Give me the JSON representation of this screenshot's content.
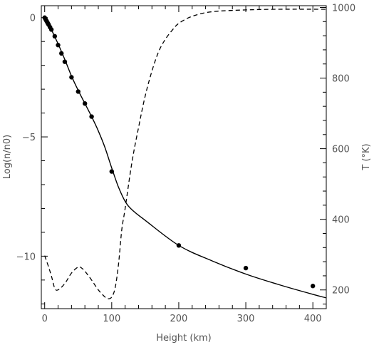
{
  "chart_data": {
    "type": "line",
    "xlabel": "Height (km)",
    "ylabel_left": "Log(n/n0)",
    "ylabel_right": "T (°K)",
    "xlim": [
      -5,
      420
    ],
    "ylim_left": [
      -12.2,
      0.5
    ],
    "ylim_right": [
      147,
      1005
    ],
    "x_ticks": [
      0,
      100,
      200,
      300,
      400
    ],
    "y_left_ticks": [
      0,
      -5,
      -10
    ],
    "y_right_ticks": [
      200,
      400,
      600,
      800,
      1000
    ],
    "grid": false,
    "series": [
      {
        "axis": "left",
        "style": "solid",
        "x": [
          0,
          5,
          10,
          15,
          20,
          30,
          40,
          50,
          60,
          70,
          80,
          90,
          100,
          110,
          120,
          130,
          150,
          200,
          250,
          300,
          350,
          400,
          420
        ],
        "values": [
          0.0,
          -0.23,
          -0.5,
          -0.8,
          -1.1,
          -1.75,
          -2.45,
          -3.05,
          -3.6,
          -4.15,
          -4.75,
          -5.45,
          -6.3,
          -7.1,
          -7.7,
          -8.05,
          -8.5,
          -9.55,
          -10.2,
          -10.75,
          -11.2,
          -11.6,
          -11.75
        ]
      },
      {
        "axis": "left",
        "style": "points",
        "x": [
          0,
          1,
          2,
          3,
          4,
          5,
          6,
          8,
          10,
          15,
          20,
          25,
          30,
          40,
          50,
          60,
          70,
          100,
          200,
          300,
          400
        ],
        "values": [
          0.0,
          -0.05,
          -0.1,
          -0.15,
          -0.2,
          -0.25,
          -0.3,
          -0.4,
          -0.5,
          -0.78,
          -1.15,
          -1.5,
          -1.85,
          -2.5,
          -3.1,
          -3.6,
          -4.15,
          -6.45,
          -9.55,
          -10.5,
          -11.25
        ]
      },
      {
        "axis": "right",
        "style": "dashed",
        "x": [
          0,
          5,
          10,
          15,
          20,
          30,
          40,
          50,
          55,
          60,
          70,
          80,
          90,
          95,
          100,
          105,
          110,
          115,
          120,
          130,
          140,
          150,
          160,
          170,
          180,
          190,
          200,
          220,
          250,
          300,
          350,
          420
        ],
        "values": [
          297,
          270,
          240,
          205,
          200,
          218,
          248,
          265,
          262,
          253,
          228,
          200,
          180,
          175,
          180,
          205,
          270,
          370,
          430,
          560,
          660,
          750,
          820,
          875,
          910,
          935,
          955,
          975,
          988,
          993,
          995,
          995
        ]
      }
    ]
  }
}
